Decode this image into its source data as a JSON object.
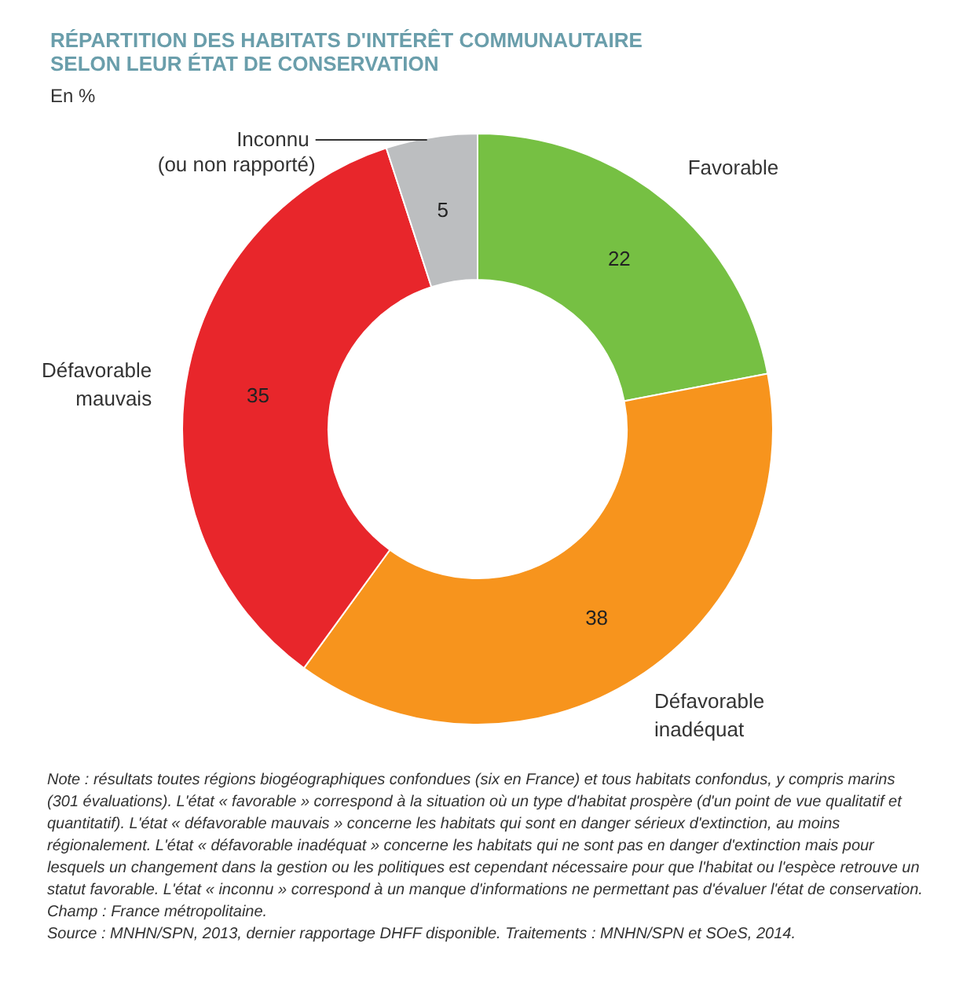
{
  "chart_data": {
    "type": "donut",
    "title": "RÉPARTITION DES HABITATS D'INTÉRÊT COMMUNAUTAIRE SELON LEUR ÉTAT DE CONSERVATION",
    "subtitle": "En %",
    "categories": [
      "Favorable",
      "Défavorable inadéquat",
      "Défavorable mauvais",
      "Inconnu (ou non rapporté)"
    ],
    "values": [
      22,
      38,
      35,
      5
    ],
    "colors": [
      "#76c043",
      "#f7941d",
      "#e8262b",
      "#bcbec0"
    ],
    "data_labels": true,
    "annotations": [
      "Note : résultats toutes régions biogéographiques confondues (six en France) et tous habitats confondus, y compris marins (301 évaluations). L'état « favorable » correspond à la situation où un type d'habitat prospère (d'un point de vue qualitatif et quantitatif). L'état « défavorable mauvais » concerne les habitats qui sont en danger sérieux d'extinction, au moins régionalement. L'état « défavorable inadéquat » concerne les habitats qui ne sont pas en danger d'extinction mais pour lesquels un changement dans la gestion ou les politiques est cependant nécessaire pour que l'habitat ou l'espèce retrouve un statut favorable. L'état « inconnu » correspond à un manque d'informations ne permettant pas d'évaluer l'état de conservation.",
      "Champ : France métropolitaine.",
      "Source : MNHN/SPN, 2013, dernier rapportage DHFF disponible. Traitements : MNHN/SPN et SOeS, 2014."
    ]
  }
}
